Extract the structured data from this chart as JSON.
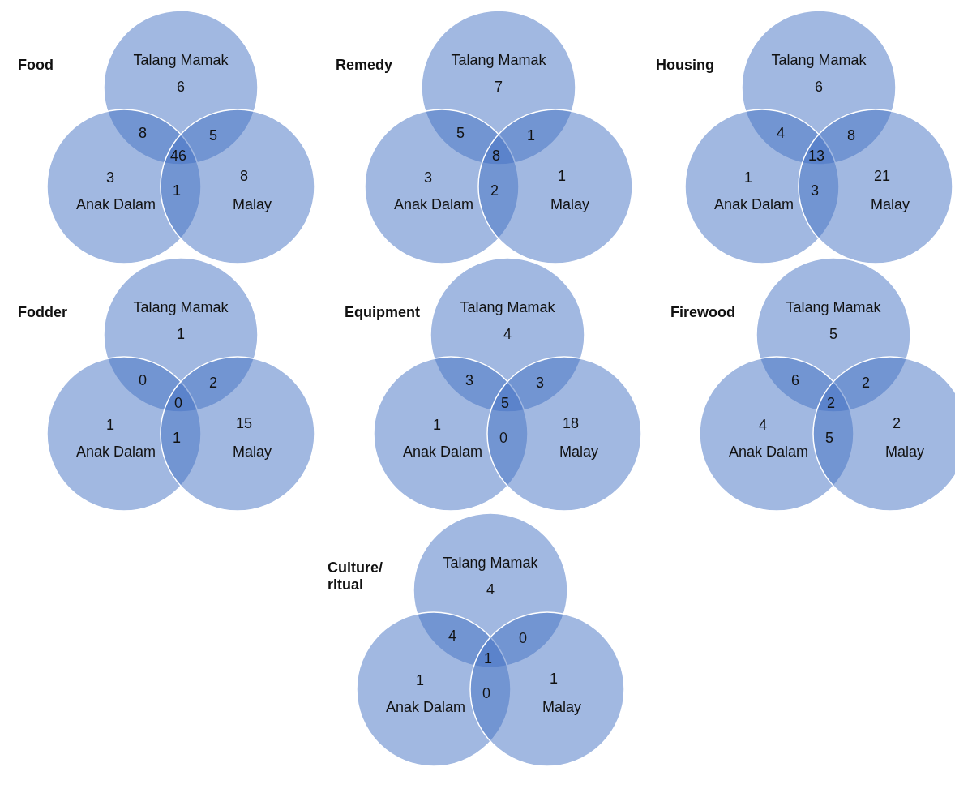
{
  "chart_data": [
    {
      "type": "other",
      "title": "Food",
      "color": "#4472c4",
      "categories": [
        "Talang Mamak",
        "Anak Dalam",
        "Malay"
      ],
      "values": [
        6,
        3,
        8
      ],
      "data_labels": true,
      "annotations": [
        "8",
        "5",
        "1",
        "46"
      ]
    },
    {
      "type": "other",
      "title": "Remedy",
      "color": "#4472c4",
      "categories": [
        "Talang Mamak",
        "Anak Dalam",
        "Malay"
      ],
      "values": [
        7,
        3,
        1
      ],
      "data_labels": true,
      "annotations": [
        "5",
        "1",
        "2",
        "8"
      ]
    },
    {
      "type": "other",
      "title": "Housing",
      "color": "#4472c4",
      "categories": [
        "Talang Mamak",
        "Anak Dalam",
        "Malay"
      ],
      "values": [
        6,
        1,
        21
      ],
      "data_labels": true,
      "annotations": [
        "4",
        "8",
        "3",
        "13"
      ]
    },
    {
      "type": "other",
      "title": "Fodder",
      "color": "#4472c4",
      "categories": [
        "Talang Mamak",
        "Anak Dalam",
        "Malay"
      ],
      "values": [
        1,
        1,
        15
      ],
      "data_labels": true,
      "annotations": [
        "0",
        "2",
        "1",
        "0"
      ]
    },
    {
      "type": "other",
      "title": "Equipment",
      "color": "#4472c4",
      "categories": [
        "Talang Mamak",
        "Anak Dalam",
        "Malay"
      ],
      "values": [
        4,
        1,
        18
      ],
      "data_labels": true,
      "annotations": [
        "3",
        "3",
        "0",
        "5"
      ]
    },
    {
      "type": "other",
      "title": "Firewood",
      "color": "#4472c4",
      "categories": [
        "Talang Mamak",
        "Anak Dalam",
        "Malay"
      ],
      "values": [
        5,
        4,
        2
      ],
      "data_labels": true,
      "annotations": [
        "6",
        "2",
        "5",
        "2"
      ]
    },
    {
      "type": "other",
      "title": "Culture/ ritual",
      "color": "#4472c4",
      "categories": [
        "Talang Mamak",
        "Anak Dalam",
        "Malay"
      ],
      "values": [
        4,
        1,
        1
      ],
      "data_labels": true,
      "annotations": [
        "4",
        "0",
        "0",
        "1"
      ]
    }
  ]
}
